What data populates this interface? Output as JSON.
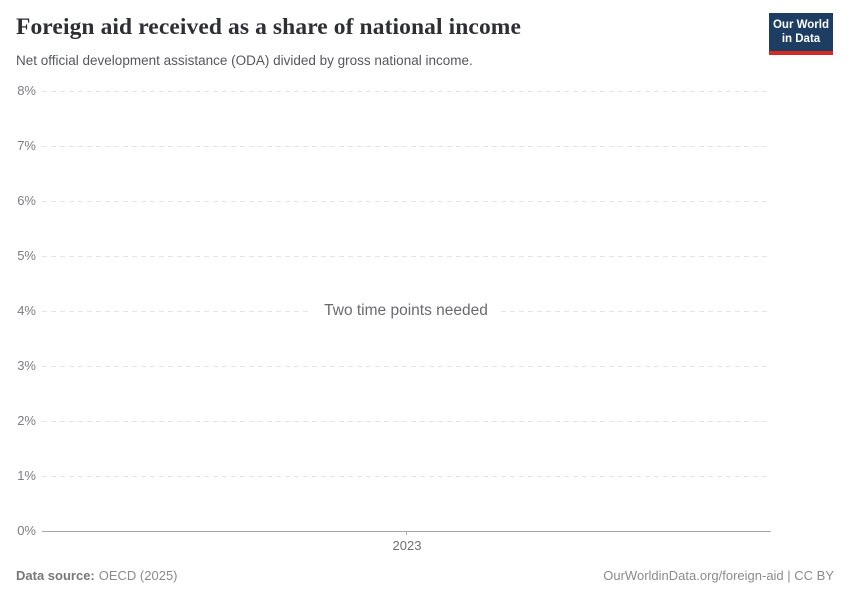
{
  "header": {
    "title": "Foreign aid received as a share of national income",
    "subtitle": "Net official development assistance (ODA) divided by gross national income.",
    "logo": {
      "line1": "Our World",
      "line2": "in Data"
    }
  },
  "chart": {
    "empty_message": "Two time points needed",
    "y_tick_labels": [
      "8%",
      "7%",
      "6%",
      "5%",
      "4%",
      "3%",
      "2%",
      "1%",
      "0%"
    ],
    "x_tick_labels": [
      "2023"
    ]
  },
  "chart_data": {
    "type": "line",
    "title": "Foreign aid received as a share of national income",
    "subtitle": "Net official development assistance (ODA) divided by gross national income.",
    "xlabel": "",
    "ylabel": "",
    "ylim": [
      0,
      8
    ],
    "y_ticks": [
      0,
      1,
      2,
      3,
      4,
      5,
      6,
      7,
      8
    ],
    "y_tick_format": "{value}%",
    "x_ticks": [
      2023
    ],
    "series": [],
    "annotation": "Two time points needed",
    "grid": "horizontal-dashed",
    "legend_position": "none"
  },
  "footer": {
    "source_label": "Data source:",
    "source_value": "OECD (2025)",
    "attribution": "OurWorldinData.org/foreign-aid | CC BY"
  },
  "colors": {
    "logo_background": "#1d3d63",
    "logo_accent": "#d42b21",
    "title_text": "#2e2f35",
    "subtitle_text": "#55575c",
    "axis_label": "#7c7d81",
    "gridline": "#e4e5e7",
    "axis_line": "#a6a7aa",
    "message_text": "#696a6e",
    "footer_text": "#8a8b8d"
  }
}
